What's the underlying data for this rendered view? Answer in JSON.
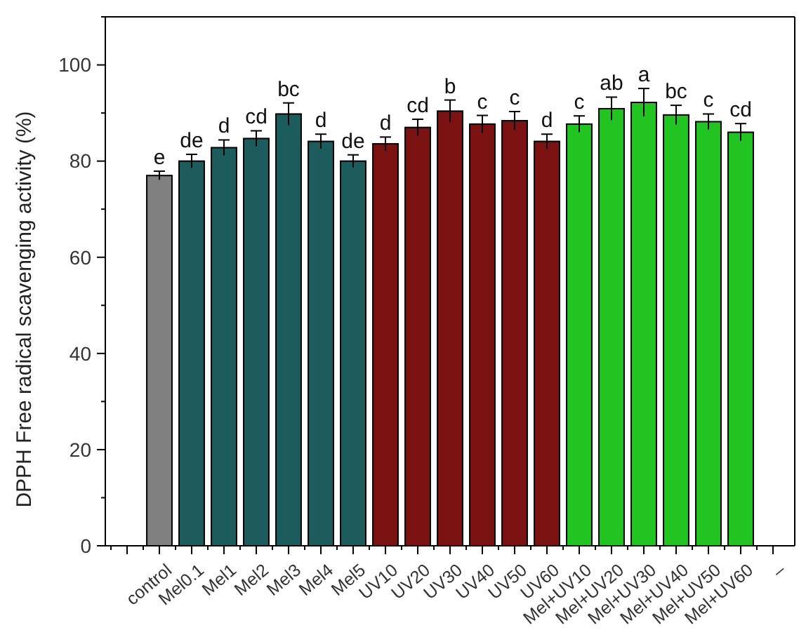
{
  "chart_data": {
    "type": "bar",
    "ylabel": "DPPH Free radical scavenging activity (%)",
    "categories": [
      null,
      "control",
      "Mel0.1",
      "Mel1",
      "Mel2",
      "Mel3",
      "Mel4",
      "Mel5",
      "UV10",
      "UV20",
      "UV30",
      "UV40",
      "UV50",
      "UV60",
      "Mel+UV10",
      "Mel+UV20",
      "Mel+UV30",
      "Mel+UV40",
      "Mel+UV50",
      "Mel+UV60",
      "–"
    ],
    "values": [
      null,
      77.0,
      80.0,
      82.8,
      84.7,
      89.8,
      84.1,
      80.0,
      83.6,
      87.0,
      90.4,
      87.7,
      88.4,
      84.1,
      87.7,
      90.9,
      92.2,
      89.6,
      88.2,
      86.0,
      null
    ],
    "errors": [
      null,
      0.9,
      1.4,
      1.6,
      1.6,
      2.3,
      1.5,
      1.3,
      1.4,
      1.7,
      2.3,
      1.8,
      1.9,
      1.5,
      1.7,
      2.4,
      2.9,
      2.0,
      1.6,
      1.8,
      null
    ],
    "colors": [
      null,
      "#808080",
      "#1d5c5c",
      "#1d5c5c",
      "#1d5c5c",
      "#1d5c5c",
      "#1d5c5c",
      "#1d5c5c",
      "#7a1212",
      "#7a1212",
      "#7a1212",
      "#7a1212",
      "#7a1212",
      "#7a1212",
      "#22c422",
      "#22c422",
      "#22c422",
      "#22c422",
      "#22c422",
      "#22c422",
      null
    ],
    "ylim": [
      0,
      110
    ],
    "yticks": [
      0,
      {
        "value": 10,
        "label": null
      },
      20,
      {
        "value": 30,
        "label": null
      },
      40,
      {
        "value": 50,
        "label": null
      },
      60,
      {
        "value": 70,
        "label": null
      },
      80,
      {
        "value": 90,
        "label": null
      },
      100,
      {
        "value": 110,
        "label": null
      }
    ],
    "grid": false,
    "annotations": [
      {
        "text": "e",
        "x": "control",
        "y": 77.0
      },
      {
        "text": "de",
        "x": "Mel0.1",
        "y": 80.0
      },
      {
        "text": "d",
        "x": "Mel1",
        "y": 82.8
      },
      {
        "text": "cd",
        "x": "Mel2",
        "y": 84.7
      },
      {
        "text": "bc",
        "x": "Mel3",
        "y": 89.8
      },
      {
        "text": "d",
        "x": "Mel4",
        "y": 84.1
      },
      {
        "text": "de",
        "x": "Mel5",
        "y": 80.0
      },
      {
        "text": "d",
        "x": "UV10",
        "y": 83.6
      },
      {
        "text": "cd",
        "x": "UV20",
        "y": 87.0
      },
      {
        "text": "b",
        "x": "UV30",
        "y": 90.4
      },
      {
        "text": "c",
        "x": "UV40",
        "y": 87.7
      },
      {
        "text": "c",
        "x": "UV50",
        "y": 88.4
      },
      {
        "text": "d",
        "x": "UV60",
        "y": 84.1
      },
      {
        "text": "c",
        "x": "Mel+UV10",
        "y": 87.7
      },
      {
        "text": "ab",
        "x": "Mel+UV20",
        "y": 90.9
      },
      {
        "text": "a",
        "x": "Mel+UV30",
        "y": 92.2
      },
      {
        "text": "bc",
        "x": "Mel+UV40",
        "y": 89.6
      },
      {
        "text": "c",
        "x": "Mel+UV50",
        "y": 88.2
      },
      {
        "text": "cd",
        "x": "Mel+UV60",
        "y": 86.0
      }
    ]
  }
}
